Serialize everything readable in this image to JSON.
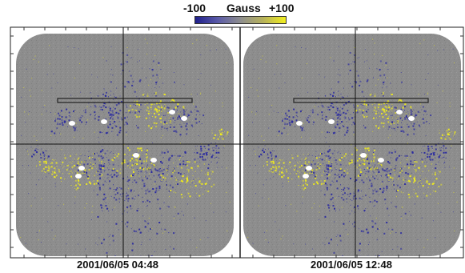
{
  "colorbar": {
    "min_label": "-100",
    "title": "Gauss",
    "max_label": "+100",
    "colors": [
      "#1f1f8c",
      "#8e8e8e",
      "#f2ef1e"
    ]
  },
  "panels": [
    {
      "timestamp": "2001/06/05 04:48"
    },
    {
      "timestamp": "2001/06/05 12:48"
    }
  ],
  "style": {
    "disk_gray": "#8d8d8d",
    "negative_color": "#2a2aa0",
    "positive_color": "#f0ec1c",
    "frame_color": "#222222"
  }
}
